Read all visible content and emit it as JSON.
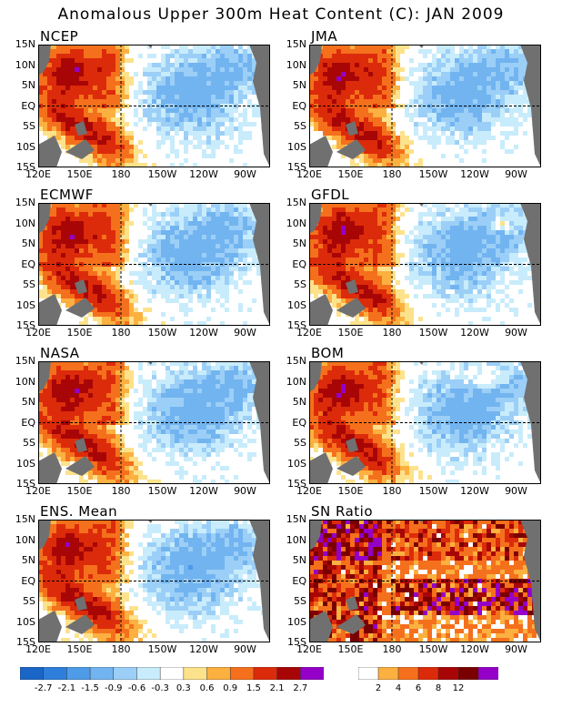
{
  "title": "Anomalous Upper 300m Heat Content (C): JAN 2009",
  "panels": [
    {
      "name": "NCEP"
    },
    {
      "name": "JMA"
    },
    {
      "name": "ECMWF"
    },
    {
      "name": "GFDL"
    },
    {
      "name": "NASA"
    },
    {
      "name": "BOM"
    },
    {
      "name": "ENS. Mean"
    },
    {
      "name": "SN Ratio"
    }
  ],
  "lat_ticks": [
    "15N",
    "10N",
    "5N",
    "EQ",
    "5S",
    "10S",
    "15S"
  ],
  "lon_ticks": [
    "120E",
    "150E",
    "180",
    "150W",
    "120W",
    "90W"
  ],
  "colorbar_anomaly": {
    "labels": [
      "-2.7",
      "-2.1",
      "-1.5",
      "-0.9",
      "-0.6",
      "-0.3",
      "0.3",
      "0.6",
      "0.9",
      "1.5",
      "2.1",
      "2.7"
    ],
    "colors": [
      "#1a66c8",
      "#2e7fdc",
      "#4e9be8",
      "#72b4f0",
      "#9ccff7",
      "#c8ecfb",
      "#ffffff",
      "#fde28c",
      "#fbb040",
      "#f5701c",
      "#dc2b0a",
      "#a80606",
      "#9400c8"
    ]
  },
  "colorbar_sn": {
    "labels": [
      "2",
      "4",
      "6",
      "8",
      "12"
    ],
    "colors": [
      "#ffffff",
      "#fbb040",
      "#f5701c",
      "#dc2b0a",
      "#a80606",
      "#7a0000",
      "#9400c8"
    ]
  }
}
